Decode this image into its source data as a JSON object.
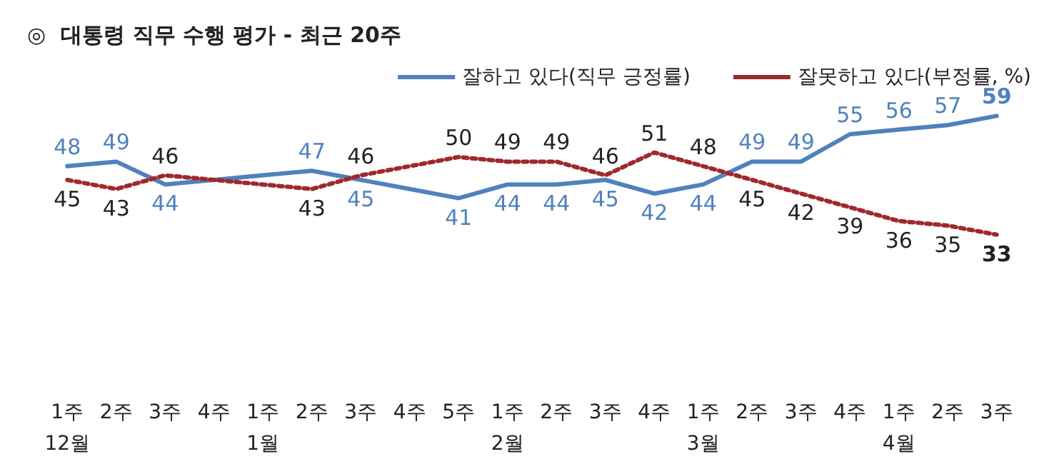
{
  "chart_data": {
    "type": "line",
    "title": "◎  대통령 직무 수행 평가 - 최근 20주",
    "categories": [
      "1주\n12월",
      "2주",
      "3주",
      "4주",
      "1주\n1월",
      "2주",
      "3주",
      "4주",
      "5주",
      "1주\n2월",
      "2주",
      "3주",
      "4주",
      "1주\n3월",
      "2주",
      "3주",
      "4주",
      "1주\n4월",
      "2주",
      "3주"
    ],
    "series": [
      {
        "name": "잘하고 있다(직무 긍정률)",
        "color": "#4f81bd",
        "line_style": "solid",
        "values": [
          48,
          49,
          44,
          45,
          46,
          47,
          45,
          43,
          41,
          44,
          44,
          45,
          42,
          44,
          49,
          49,
          55,
          56,
          57,
          59
        ],
        "value_labels": [
          "48",
          "49",
          "44",
          null,
          null,
          "47",
          "45",
          null,
          "41",
          "44",
          "44",
          "45",
          "42",
          "44",
          "49",
          "49",
          "55",
          "56",
          "57",
          "59"
        ]
      },
      {
        "name": "잘못하고 있다(부정률, %)",
        "color": "#a0282d",
        "line_style": "dotted",
        "values": [
          45,
          43,
          46,
          45,
          44,
          43,
          46,
          48,
          50,
          49,
          49,
          46,
          51,
          48,
          45,
          42,
          39,
          36,
          35,
          33
        ],
        "value_labels": [
          "45",
          "43",
          "46",
          null,
          null,
          "43",
          "46",
          null,
          "50",
          "49",
          "49",
          "46",
          "51",
          "48",
          "45",
          "42",
          "39",
          "36",
          "35",
          "33"
        ]
      }
    ],
    "grid": false,
    "tick_labels": "x",
    "legend": "top right",
    "marker": "none"
  }
}
